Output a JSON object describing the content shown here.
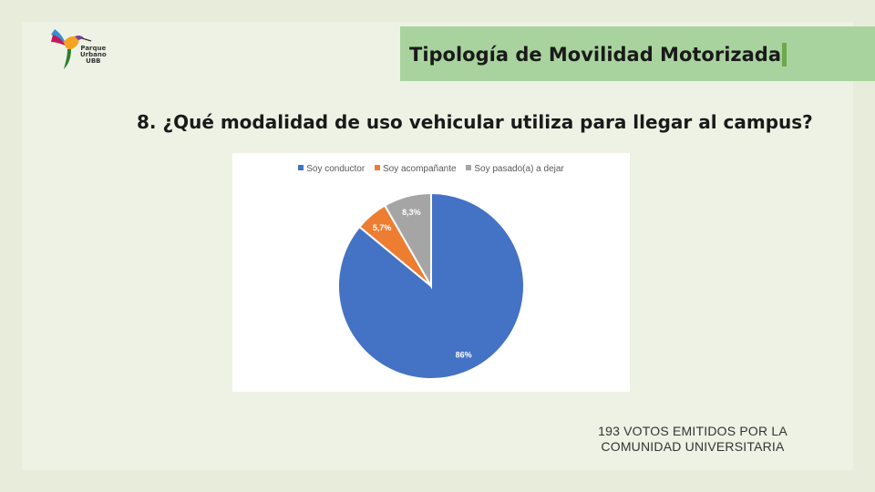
{
  "logo": {
    "name": "hummingbird-logo",
    "lines": [
      "Parque",
      "Urbano",
      "UBB"
    ]
  },
  "header": {
    "title": "Tipología de Movilidad Motorizada"
  },
  "question": "8. ¿Qué modalidad de uso vehicular utiliza para llegar al campus?",
  "chart_data": {
    "type": "pie",
    "title": "",
    "legend_position": "top",
    "categories": [
      "Soy conductor",
      "Soy acompañante",
      "Soy pasado(a) a dejar"
    ],
    "values": [
      86,
      5.7,
      8.3
    ],
    "labels": [
      "86%",
      "5,7%",
      "8,3%"
    ],
    "colors": [
      "#4472c4",
      "#ed7d31",
      "#a5a5a5"
    ]
  },
  "footer": {
    "line1": "193  VOTOS EMITIDOS POR LA",
    "line2": "COMUNIDAD UNIVERSITARIA"
  }
}
